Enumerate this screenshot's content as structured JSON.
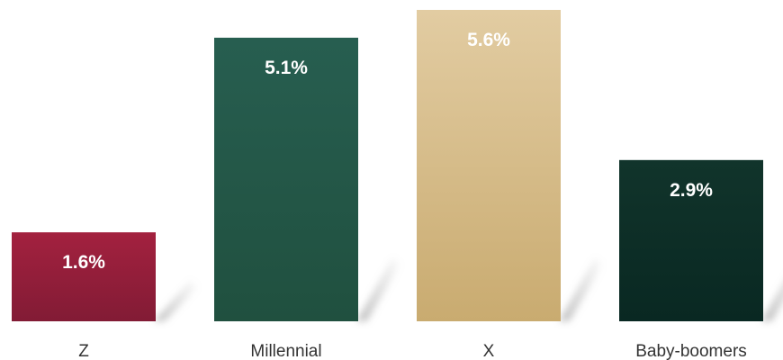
{
  "chart_data": {
    "type": "bar",
    "categories": [
      "Z",
      "Millennial",
      "X",
      "Baby-boomers"
    ],
    "values": [
      1.6,
      5.1,
      5.6,
      2.9
    ],
    "value_labels": [
      "1.6%",
      "5.1%",
      "5.6%",
      "2.9%"
    ],
    "title": "",
    "xlabel": "",
    "ylabel": "",
    "ylim": [
      0,
      5.6
    ],
    "grid": false,
    "legend": "none",
    "colors": [
      [
        "#a3213f",
        "#821b35"
      ],
      [
        "#275e50",
        "#20503f"
      ],
      [
        "#e2cca2",
        "#c9ab70"
      ],
      [
        "#11342b",
        "#092822"
      ]
    ]
  }
}
